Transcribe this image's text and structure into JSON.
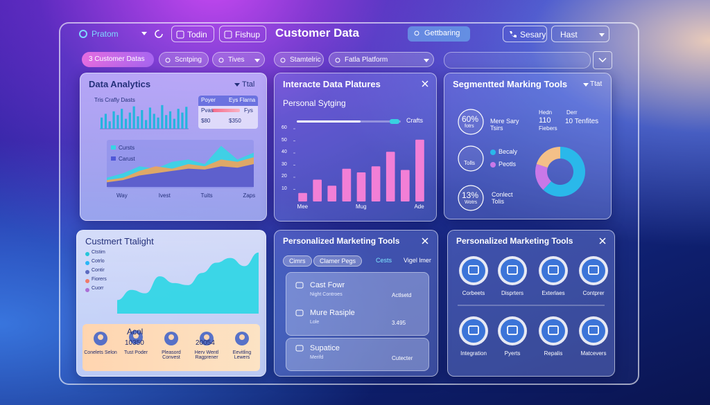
{
  "header": {
    "brand": "Pratom",
    "buttons": [
      "Todin",
      "Fishup"
    ],
    "title": "Customer Data",
    "search": "Gettbaring",
    "actions": [
      "Sesary",
      "Hast"
    ]
  },
  "toolbar": {
    "chips": [
      "3 Customer Datas",
      "Scntping",
      "Tives",
      "Stamtelric",
      "Fatla Platform"
    ]
  },
  "data_analytics": {
    "title": "Data Analytics",
    "filter": "Ttal",
    "bar_chart": {
      "type": "bar",
      "title": "Tris Crafly Dasts",
      "color": "#25b4de",
      "ylim": [
        0,
        100
      ],
      "values": [
        45,
        60,
        30,
        70,
        55,
        80,
        40,
        65,
        90,
        50,
        75,
        35,
        85,
        60,
        45,
        95,
        55,
        70,
        40,
        80,
        65,
        88
      ]
    },
    "info_box": {
      "rows": [
        [
          "Poyer",
          "Eys Flarna"
        ],
        [
          "Pvas",
          "Fys"
        ],
        [
          "$80",
          "$350"
        ]
      ]
    },
    "area_chart": {
      "type": "area",
      "ylim": [
        0,
        100
      ],
      "categories": [
        "Way",
        null,
        null,
        "Ivest",
        null,
        null,
        "Tuits",
        null,
        null,
        "Zaps"
      ],
      "series": [
        {
          "name": "Cursts",
          "color": "#36d6e4",
          "values": [
            20,
            30,
            45,
            40,
            55,
            60,
            50,
            90,
            60,
            75
          ]
        },
        {
          "color": "#f0a35a",
          "values": [
            15,
            20,
            35,
            45,
            40,
            50,
            45,
            60,
            55,
            65
          ]
        },
        {
          "name": "Carust",
          "color": "#5058d8",
          "values": [
            10,
            15,
            25,
            30,
            35,
            40,
            38,
            45,
            42,
            50
          ]
        }
      ]
    }
  },
  "interactive_data": {
    "title": "Interacte Data Platures",
    "subtitle": "Personal Sytging",
    "slider_label": "Crafts",
    "chart": {
      "type": "bar",
      "color": "#f27fd6",
      "ylim": [
        0,
        60
      ],
      "yticks": [
        10,
        20,
        30,
        40,
        50,
        60
      ],
      "categories": [
        "Mee",
        null,
        null,
        null,
        "Mug",
        null,
        null,
        null,
        "Ade"
      ],
      "values": [
        7,
        18,
        13,
        27,
        24,
        29,
        41,
        26,
        51
      ]
    }
  },
  "segmented": {
    "title": "Segmentted Marking Tools",
    "filter": "Ttat",
    "stats": [
      {
        "value": "60%",
        "label": "fotrs"
      },
      {
        "label": "Tolls"
      },
      {
        "value": "13%",
        "label": "Wotrs"
      }
    ],
    "notes": [
      "Mere Sary Tsirs",
      "Conlect Tolis"
    ],
    "figures": [
      {
        "label": "Hedn",
        "value": "110",
        "sub": "Fiebers"
      },
      {
        "label": "Derr",
        "value": "10 Tenfites"
      }
    ],
    "donut": {
      "type": "pie",
      "categories": [
        "Becaly",
        "Peotls",
        null
      ],
      "values": [
        62,
        18,
        20
      ],
      "colors": [
        "#2ab8ea",
        "#c978e8",
        "#f4c088"
      ]
    }
  },
  "customer_insight": {
    "title": "Custmert Ttalight",
    "legend": [
      {
        "name": "Ctstim",
        "color": "#26c6da"
      },
      {
        "name": "Cotrlo",
        "color": "#29b6f6"
      },
      {
        "name": "Contir",
        "color": "#5c6bc0"
      },
      {
        "name": "Fiorers",
        "color": "#ef7a6a"
      },
      {
        "name": "Cuorr",
        "color": "#ab6fd6"
      }
    ],
    "chart": {
      "type": "area",
      "color": "#33d6e6",
      "ylim": [
        0,
        100
      ],
      "values": [
        20,
        35,
        30,
        55,
        45,
        42,
        60,
        75,
        82,
        70,
        90
      ]
    },
    "items": [
      {
        "label": "Conelets Selon"
      },
      {
        "title": "Acol",
        "value": "10350",
        "label": "Tust Poder"
      },
      {
        "label": "Pleasord Convest"
      },
      {
        "value": "20054",
        "label": "Herv Wentl Ragprener"
      },
      {
        "label": "Eevitling Lewers"
      }
    ]
  },
  "marketing_tools": {
    "title": "Personalized Marketing Tools",
    "tabs": [
      "Cimrs",
      "Clamer Pegs",
      "Cests",
      "Vigel lmer"
    ],
    "items": [
      {
        "title": "Cast Fowr",
        "sub": "Night Controes",
        "right": "Actlsetd"
      },
      {
        "title": "Mure Rasiple",
        "sub": "Lole",
        "right": "3.495"
      },
      {
        "title": "Supatice",
        "sub": "Merifd",
        "right": "Cutecter"
      }
    ]
  },
  "marketing_icons": {
    "title": "Personalized Marketing Tools",
    "items": [
      "Corbeets",
      "Disprters",
      "Exterlaes",
      "Contprer",
      "Integration",
      "Pyerts",
      "Repalis",
      "Matcevers"
    ]
  }
}
